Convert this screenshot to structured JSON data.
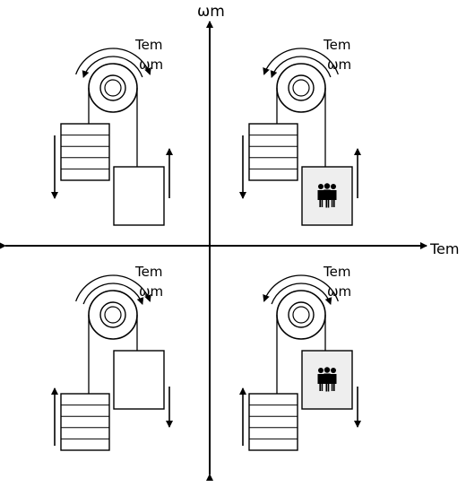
{
  "axes": {
    "vertical_label": "ωm",
    "horizontal_label": "Tem"
  },
  "quadrants": [
    {
      "id": "Q2",
      "torque_label": "Tem",
      "speed_label": "ωm",
      "torque_arrow": "clockwise",
      "speed_arrow": "counterclockwise",
      "car_loaded": false,
      "counterweight_motion": "down",
      "car_motion": "up"
    },
    {
      "id": "Q1",
      "torque_label": "Tem",
      "speed_label": "ωm",
      "torque_arrow": "counterclockwise",
      "speed_arrow": "counterclockwise",
      "car_loaded": true,
      "counterweight_motion": "down",
      "car_motion": "up"
    },
    {
      "id": "Q3",
      "torque_label": "Tem",
      "speed_label": "ωm",
      "torque_arrow": "clockwise",
      "speed_arrow": "clockwise",
      "car_loaded": false,
      "counterweight_motion": "up",
      "car_motion": "down"
    },
    {
      "id": "Q4",
      "torque_label": "Tem",
      "speed_label": "ωm",
      "torque_arrow": "counterclockwise",
      "speed_arrow": "clockwise",
      "car_loaded": true,
      "counterweight_motion": "up",
      "car_motion": "down"
    }
  ]
}
